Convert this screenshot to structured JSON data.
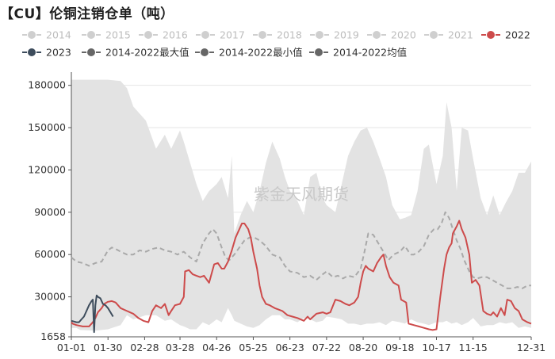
{
  "title": "【CU】伦铜注销仓单（吨）",
  "watermark": "紫金天风期货",
  "colors": {
    "band": "#e3e3e3",
    "series_2022": "#cd4b4b",
    "series_2023": "#3d4c5c",
    "mean": "#a9a9a9",
    "legend_muted": "#cfcfcf",
    "legend_muted_text": "#bdbdbd",
    "legend_dark": "#666666",
    "axis": "#555555",
    "grid": "#e6e6e6"
  },
  "chart_data": {
    "type": "line",
    "x_axis_type": "day-of-year",
    "x_ticks": [
      "01-01",
      "01-30",
      "02-28",
      "03-28",
      "04-26",
      "05-25",
      "06-23",
      "07-22",
      "08-20",
      "09-18",
      "10-17",
      "11-15",
      "12-31"
    ],
    "x_tick_days": [
      1,
      30,
      59,
      87,
      116,
      145,
      174,
      203,
      232,
      261,
      290,
      319,
      365
    ],
    "y_ticks": [
      1658,
      30000,
      60000,
      90000,
      120000,
      150000,
      180000
    ],
    "ylim": [
      1658,
      186000
    ],
    "grid": "horizontal",
    "legend_position": "top",
    "legend": [
      {
        "name": "2014",
        "active": false
      },
      {
        "name": "2015",
        "active": false
      },
      {
        "name": "2016",
        "active": false
      },
      {
        "name": "2017",
        "active": false
      },
      {
        "name": "2018",
        "active": false
      },
      {
        "name": "2019",
        "active": false
      },
      {
        "name": "2020",
        "active": false
      },
      {
        "name": "2021",
        "active": false
      },
      {
        "name": "2022",
        "active": true
      },
      {
        "name": "2023",
        "active": true
      },
      {
        "name": "2014-2022最大值",
        "active": true
      },
      {
        "name": "2014-2022最小值",
        "active": true
      },
      {
        "name": "2014-2022均值",
        "active": true
      }
    ],
    "band": {
      "x": [
        1,
        5,
        8,
        20,
        30,
        40,
        45,
        50,
        60,
        68,
        75,
        80,
        87,
        90,
        95,
        100,
        105,
        110,
        116,
        120,
        125,
        128,
        130,
        135,
        140,
        145,
        150,
        155,
        160,
        166,
        170,
        174,
        180,
        185,
        190,
        195,
        200,
        203,
        210,
        215,
        220,
        225,
        230,
        235,
        240,
        245,
        250,
        255,
        261,
        265,
        270,
        275,
        280,
        284,
        290,
        295,
        298,
        302,
        306,
        310,
        315,
        319,
        325,
        330,
        335,
        340,
        345,
        350,
        355,
        360,
        365
      ],
      "max": [
        184000,
        184000,
        184000,
        184000,
        184000,
        183000,
        178000,
        165000,
        155000,
        135000,
        145000,
        135000,
        148000,
        140000,
        125000,
        110000,
        98000,
        105000,
        110000,
        115000,
        100000,
        130000,
        75000,
        88000,
        98000,
        90000,
        105000,
        125000,
        140000,
        128000,
        115000,
        105000,
        98000,
        88000,
        115000,
        118000,
        100000,
        95000,
        90000,
        110000,
        130000,
        140000,
        148000,
        150000,
        140000,
        128000,
        115000,
        95000,
        85000,
        86000,
        88000,
        105000,
        135000,
        138000,
        110000,
        130000,
        168000,
        150000,
        105000,
        150000,
        148000,
        128000,
        100000,
        88000,
        102000,
        88000,
        97000,
        105000,
        118000,
        118000,
        126000
      ],
      "min": [
        8000,
        8000,
        6500,
        6000,
        7000,
        10000,
        17000,
        14000,
        17000,
        17000,
        13000,
        14000,
        10000,
        9000,
        7000,
        7000,
        12000,
        10000,
        14000,
        12000,
        22000,
        17000,
        13000,
        11000,
        9000,
        8000,
        10000,
        14000,
        17000,
        17000,
        14000,
        14000,
        12000,
        15000,
        14000,
        12000,
        13000,
        16000,
        15000,
        14000,
        11000,
        11000,
        10000,
        11000,
        11000,
        12000,
        10000,
        13000,
        12000,
        11000,
        14000,
        12000,
        11000,
        10000,
        12000,
        12000,
        13000,
        11000,
        12000,
        10000,
        12000,
        15000,
        9000,
        10000,
        10000,
        12000,
        11000,
        12000,
        8000,
        9000,
        8000
      ]
    },
    "series": [
      {
        "name": "2022",
        "x": [
          1,
          2,
          5,
          10,
          15,
          18,
          20,
          22,
          25,
          27,
          30,
          33,
          36,
          40,
          45,
          50,
          54,
          58,
          62,
          65,
          68,
          72,
          75,
          78,
          80,
          83,
          87,
          90,
          91,
          94,
          97,
          100,
          103,
          106,
          110,
          114,
          117,
          120,
          122,
          125,
          128,
          131,
          134,
          136,
          138,
          141,
          143,
          145,
          148,
          150,
          152,
          155,
          158,
          162,
          165,
          168,
          172,
          176,
          180,
          185,
          188,
          190,
          195,
          200,
          203,
          206,
          210,
          214,
          218,
          221,
          225,
          228,
          230,
          232,
          234,
          236,
          240,
          243,
          246,
          248,
          250,
          253,
          256,
          260,
          262,
          266,
          268,
          272,
          276,
          280,
          284,
          287,
          290,
          293,
          296,
          298,
          300,
          302,
          303,
          306,
          308,
          310,
          313,
          316,
          318,
          321,
          324,
          327,
          330,
          333,
          335,
          338,
          341,
          344,
          346,
          349,
          352,
          355,
          358,
          362,
          365
        ],
        "y": [
          12000,
          11000,
          10000,
          9000,
          9000,
          12000,
          15000,
          19000,
          22000,
          25000,
          26500,
          27000,
          26000,
          22000,
          20000,
          18000,
          15000,
          13000,
          12000,
          20000,
          24000,
          22000,
          25000,
          17000,
          20000,
          24000,
          25000,
          30000,
          48000,
          49000,
          46000,
          45000,
          44000,
          45000,
          40000,
          53000,
          54000,
          50000,
          50000,
          55000,
          63000,
          72000,
          78000,
          82000,
          82000,
          78000,
          72000,
          62000,
          50000,
          38000,
          30000,
          25000,
          24000,
          22000,
          21000,
          20000,
          17000,
          16000,
          15000,
          13000,
          16000,
          14000,
          18000,
          19000,
          18000,
          19000,
          28000,
          27000,
          25000,
          24000,
          26000,
          30000,
          40000,
          48000,
          52000,
          50000,
          48000,
          54000,
          58000,
          60000,
          52000,
          44000,
          40000,
          38000,
          28000,
          26000,
          11000,
          10000,
          9000,
          8000,
          7000,
          6500,
          7000,
          30000,
          50000,
          60000,
          65000,
          68000,
          75000,
          80000,
          84000,
          78000,
          72000,
          60000,
          40000,
          42000,
          38000,
          20000,
          18000,
          17000,
          19000,
          16000,
          22000,
          17000,
          28000,
          27000,
          22000,
          20000,
          14000,
          12000,
          11000
        ]
      },
      {
        "name": "2023",
        "x": [
          1,
          3,
          5,
          7,
          9,
          11,
          13,
          15,
          17,
          18,
          19,
          20,
          21,
          22,
          24,
          26,
          28,
          30,
          32,
          34
        ],
        "y": [
          13000,
          12500,
          12000,
          12000,
          14000,
          16000,
          20000,
          24000,
          27000,
          28000,
          5000,
          24000,
          31000,
          30000,
          29000,
          25000,
          24000,
          22000,
          19000,
          16000
        ]
      },
      {
        "name": "2014-2022均值",
        "x": [
          1,
          5,
          10,
          15,
          20,
          25,
          30,
          33,
          36,
          40,
          45,
          50,
          55,
          60,
          65,
          70,
          75,
          80,
          85,
          90,
          95,
          100,
          105,
          110,
          113,
          116,
          120,
          123,
          126,
          130,
          134,
          138,
          142,
          146,
          150,
          155,
          160,
          166,
          170,
          174,
          180,
          185,
          190,
          195,
          200,
          203,
          208,
          212,
          216,
          220,
          225,
          230,
          233,
          236,
          240,
          244,
          248,
          252,
          256,
          261,
          265,
          268,
          270,
          272,
          276,
          280,
          284,
          288,
          291,
          294,
          297,
          300,
          303,
          306,
          309,
          312,
          316,
          319,
          322,
          326,
          330,
          334,
          338,
          342,
          346,
          350,
          354,
          358,
          362,
          365
        ],
        "y": [
          58000,
          55000,
          54000,
          52000,
          54000,
          55000,
          63000,
          65000,
          64000,
          62000,
          60000,
          60000,
          63000,
          62000,
          64000,
          65000,
          63000,
          62000,
          60000,
          62000,
          58000,
          55000,
          68000,
          75000,
          78000,
          75000,
          65000,
          58000,
          56000,
          60000,
          65000,
          70000,
          72000,
          72000,
          70000,
          66000,
          60000,
          58000,
          52000,
          48000,
          47000,
          44000,
          45000,
          42000,
          46000,
          48000,
          44000,
          45000,
          43000,
          45000,
          44000,
          50000,
          62000,
          75000,
          74000,
          68000,
          62000,
          56000,
          60000,
          62000,
          66000,
          62000,
          60000,
          60000,
          62000,
          66000,
          74000,
          78000,
          78000,
          82000,
          90000,
          86000,
          78000,
          70000,
          64000,
          56000,
          48000,
          44000,
          43000,
          44000,
          44000,
          42000,
          40000,
          38000,
          36000,
          36000,
          37000,
          36000,
          38000,
          38000
        ]
      }
    ]
  }
}
